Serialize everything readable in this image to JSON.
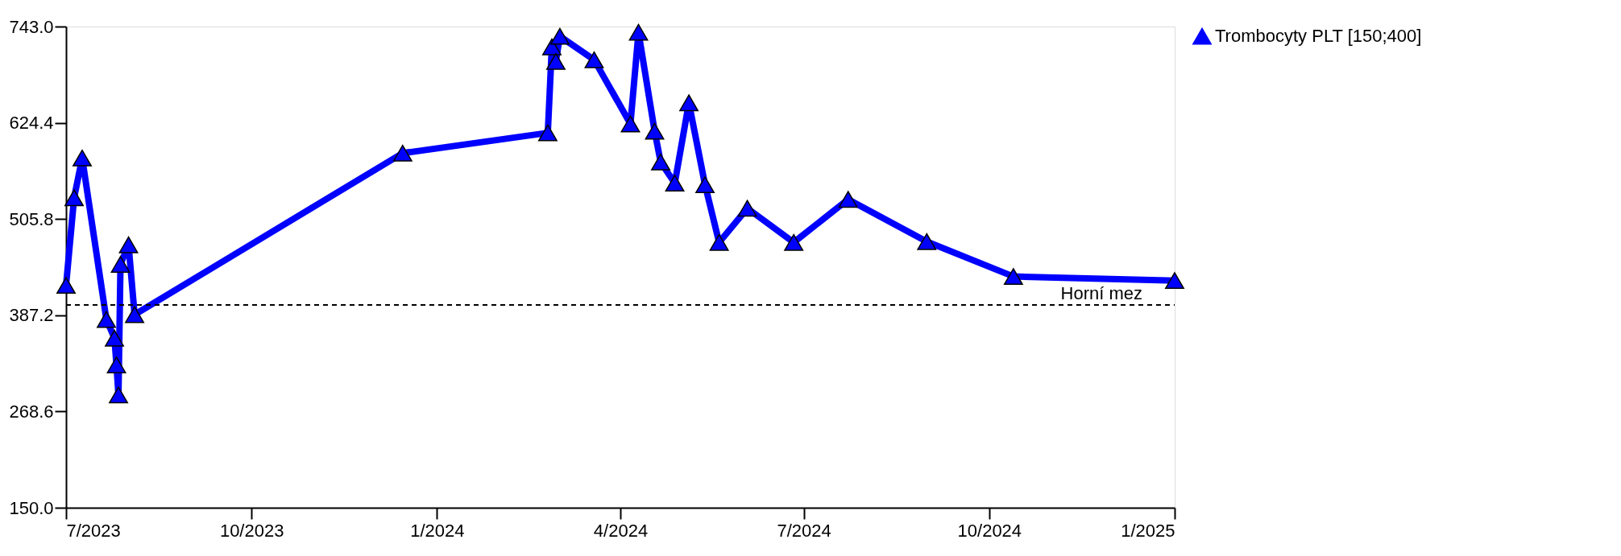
{
  "chart_data": {
    "type": "line",
    "x": [
      "2023-07-01",
      "2023-07-05",
      "2023-07-09",
      "2023-07-21",
      "2023-07-25",
      "2023-07-26",
      "2023-07-27",
      "2023-07-28",
      "2023-08-01",
      "2023-08-04",
      "2023-12-15",
      "2024-02-25",
      "2024-02-27",
      "2024-02-29",
      "2024-03-02",
      "2024-03-19",
      "2024-04-06",
      "2024-04-10",
      "2024-04-18",
      "2024-04-21",
      "2024-04-28",
      "2024-05-05",
      "2024-05-13",
      "2024-05-20",
      "2024-06-03",
      "2024-06-26",
      "2024-07-23",
      "2024-08-31",
      "2024-10-13",
      "2025-01-01"
    ],
    "series": [
      {
        "name": "Trombocyty PLT [150;400]",
        "color": "#0000ff",
        "values": [
          424,
          532,
          581,
          382,
          359,
          326,
          289,
          450,
          474,
          388,
          587,
          612,
          718,
          700,
          731,
          702,
          623,
          736,
          614,
          576,
          550,
          649,
          548,
          477,
          519,
          477,
          530,
          478,
          435,
          430
        ]
      }
    ],
    "xlim": [
      "2023-07-01",
      "2025-01-01"
    ],
    "xticks": [
      {
        "value": "2023-07-01",
        "label": "7/2023"
      },
      {
        "value": "2023-10-01",
        "label": "10/2023"
      },
      {
        "value": "2024-01-01",
        "label": "1/2024"
      },
      {
        "value": "2024-04-01",
        "label": "4/2024"
      },
      {
        "value": "2024-07-01",
        "label": "7/2024"
      },
      {
        "value": "2024-10-01",
        "label": "10/2024"
      },
      {
        "value": "2025-01-01",
        "label": "1/2025"
      }
    ],
    "ylim": [
      150,
      743
    ],
    "yticks": [
      {
        "value": 150,
        "label": "150.0"
      },
      {
        "value": 268.6,
        "label": "268.6"
      },
      {
        "value": 387.2,
        "label": "387.2"
      },
      {
        "value": 505.8,
        "label": "505.8"
      },
      {
        "value": 624.4,
        "label": "624.4"
      },
      {
        "value": 743,
        "label": "743.0"
      }
    ],
    "ref_lines": [
      {
        "axis": "y",
        "value": 400,
        "label": "Horní mez",
        "color": "#000000",
        "line_style": "dashed"
      }
    ],
    "marker": "triangle",
    "line_style": "solid",
    "grid": false,
    "legend": "right"
  }
}
